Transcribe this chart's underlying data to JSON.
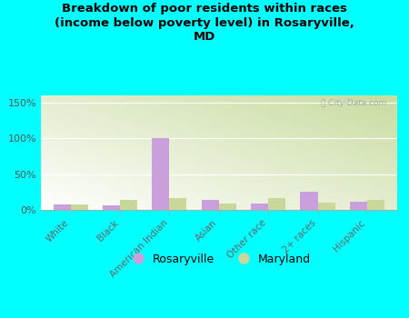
{
  "title": "Breakdown of poor residents within races\n(income below poverty level) in Rosaryville,\nMD",
  "categories": [
    "White",
    "Black",
    "American Indian",
    "Asian",
    "Other race",
    "2+ races",
    "Hispanic"
  ],
  "rosaryville": [
    8,
    6,
    100,
    14,
    9,
    25,
    11
  ],
  "maryland": [
    8,
    14,
    17,
    9,
    17,
    10,
    14
  ],
  "rosaryville_color": "#c9a0dc",
  "maryland_color": "#c8d89a",
  "background_outer": "#00ffff",
  "grad_color_bottom_left": "#c8dca0",
  "grad_color_top_right": "#ffffff",
  "ylim": [
    0,
    160
  ],
  "yticks": [
    0,
    50,
    100,
    150
  ],
  "ytick_labels": [
    "0%",
    "50%",
    "100%",
    "150%"
  ],
  "bar_width": 0.35,
  "watermark": "ⓘ City-Data.com",
  "legend_rosaryville": "Rosaryville",
  "legend_maryland": "Maryland"
}
